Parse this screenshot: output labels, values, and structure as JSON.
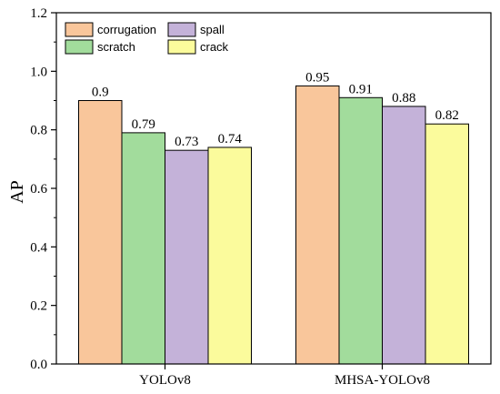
{
  "chart_data": {
    "type": "bar",
    "categories": [
      "YOLOv8",
      "MHSA-YOLOv8"
    ],
    "series": [
      {
        "name": "corrugation",
        "values": [
          0.9,
          0.95
        ],
        "color": "#f9c69b"
      },
      {
        "name": "scratch",
        "values": [
          0.79,
          0.91
        ],
        "color": "#a2dc9c"
      },
      {
        "name": "spall",
        "values": [
          0.73,
          0.88
        ],
        "color": "#c4b2d9"
      },
      {
        "name": "crack",
        "values": [
          0.74,
          0.82
        ],
        "color": "#fbfb9c"
      }
    ],
    "data_labels": [
      [
        "0.9",
        "0.95"
      ],
      [
        "0.79",
        "0.91"
      ],
      [
        "0.73",
        "0.88"
      ],
      [
        "0.74",
        "0.82"
      ]
    ],
    "ylabel": "AP",
    "xlabel": "",
    "ylim": [
      0.0,
      1.2
    ],
    "yticks": [
      "0.0",
      "0.2",
      "0.4",
      "0.6",
      "0.8",
      "1.0",
      "1.2"
    ],
    "legend_position": "top-left",
    "grid": false
  }
}
